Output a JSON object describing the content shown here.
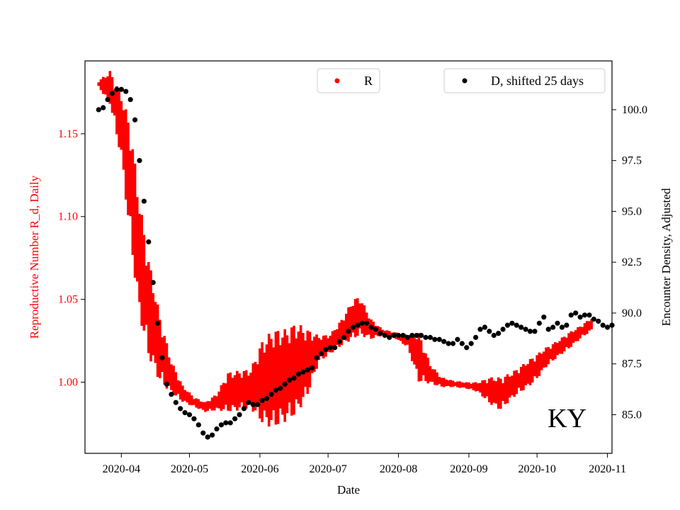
{
  "chart_data": {
    "type": "scatter",
    "title": "",
    "annotation": "KY",
    "xlabel": "Date",
    "ylabel_left": "Reproductive Number R_d, Daily",
    "ylabel_right": "Encounter Density, Adjusted",
    "x_ticks": [
      "2020-04",
      "2020-05",
      "2020-06",
      "2020-07",
      "2020-08",
      "2020-09",
      "2020-10",
      "2020-11"
    ],
    "xlim": [
      "2020-03-16",
      "2020-11-03"
    ],
    "ylim_left": [
      0.957,
      1.194
    ],
    "ylim_right": [
      83.1,
      102.4
    ],
    "yticks_left": [
      "1.00",
      "1.05",
      "1.10",
      "1.15"
    ],
    "yticks_right": [
      "85.0",
      "87.5",
      "90.0",
      "92.5",
      "95.0",
      "97.5",
      "100.0"
    ],
    "colors": {
      "R": "#ff0000",
      "D": "#000000",
      "left_axis_text": "#ff0000",
      "right_axis_text": "#000000"
    },
    "grid": false,
    "series": [
      {
        "name": "R",
        "axis": "left",
        "color": "#ff0000",
        "style": "band",
        "center": [
          [
            "2020-03-22",
            1.18
          ],
          [
            "2020-03-27",
            1.178
          ],
          [
            "2020-04-01",
            1.155
          ],
          [
            "2020-04-05",
            1.12
          ],
          [
            "2020-04-09",
            1.075
          ],
          [
            "2020-04-13",
            1.045
          ],
          [
            "2020-04-18",
            1.02
          ],
          [
            "2020-04-23",
            1.003
          ],
          [
            "2020-04-28",
            0.993
          ],
          [
            "2020-05-03",
            0.988
          ],
          [
            "2020-05-08",
            0.985
          ],
          [
            "2020-05-13",
            0.988
          ],
          [
            "2020-05-18",
            0.994
          ],
          [
            "2020-05-23",
            0.995
          ],
          [
            "2020-05-28",
            0.996
          ],
          [
            "2020-06-02",
            1.0
          ],
          [
            "2020-06-07",
            1.002
          ],
          [
            "2020-06-12",
            1.004
          ],
          [
            "2020-06-17",
            1.008
          ],
          [
            "2020-06-22",
            1.012
          ],
          [
            "2020-06-27",
            1.02
          ],
          [
            "2020-07-02",
            1.023
          ],
          [
            "2020-07-07",
            1.03
          ],
          [
            "2020-07-12",
            1.038
          ],
          [
            "2020-07-15",
            1.04
          ],
          [
            "2020-07-20",
            1.032
          ],
          [
            "2020-07-25",
            1.03
          ],
          [
            "2020-07-31",
            1.028
          ],
          [
            "2020-08-05",
            1.025
          ],
          [
            "2020-08-10",
            1.015
          ],
          [
            "2020-08-15",
            1.005
          ],
          [
            "2020-08-20",
            1.0
          ],
          [
            "2020-08-25",
            0.999
          ],
          [
            "2020-08-31",
            0.998
          ],
          [
            "2020-09-05",
            0.997
          ],
          [
            "2020-09-10",
            0.995
          ],
          [
            "2020-09-15",
            0.993
          ],
          [
            "2020-09-20",
            0.998
          ],
          [
            "2020-09-25",
            1.003
          ],
          [
            "2020-09-30",
            1.008
          ],
          [
            "2020-10-05",
            1.015
          ],
          [
            "2020-10-10",
            1.02
          ],
          [
            "2020-10-15",
            1.025
          ],
          [
            "2020-10-20",
            1.03
          ],
          [
            "2020-10-25",
            1.035
          ]
        ],
        "half_width": [
          [
            "2020-03-22",
            0.002
          ],
          [
            "2020-03-27",
            0.01
          ],
          [
            "2020-04-01",
            0.02
          ],
          [
            "2020-04-05",
            0.035
          ],
          [
            "2020-04-09",
            0.035
          ],
          [
            "2020-04-13",
            0.03
          ],
          [
            "2020-04-18",
            0.02
          ],
          [
            "2020-04-23",
            0.01
          ],
          [
            "2020-04-28",
            0.005
          ],
          [
            "2020-05-03",
            0.003
          ],
          [
            "2020-05-08",
            0.003
          ],
          [
            "2020-05-13",
            0.005
          ],
          [
            "2020-05-18",
            0.012
          ],
          [
            "2020-05-23",
            0.012
          ],
          [
            "2020-05-28",
            0.012
          ],
          [
            "2020-06-02",
            0.025
          ],
          [
            "2020-06-07",
            0.03
          ],
          [
            "2020-06-12",
            0.028
          ],
          [
            "2020-06-17",
            0.028
          ],
          [
            "2020-06-22",
            0.02
          ],
          [
            "2020-06-27",
            0.008
          ],
          [
            "2020-07-02",
            0.006
          ],
          [
            "2020-07-07",
            0.008
          ],
          [
            "2020-07-12",
            0.012
          ],
          [
            "2020-07-15",
            0.012
          ],
          [
            "2020-07-20",
            0.006
          ],
          [
            "2020-07-25",
            0.002
          ],
          [
            "2020-07-31",
            0.002
          ],
          [
            "2020-08-05",
            0.004
          ],
          [
            "2020-08-10",
            0.015
          ],
          [
            "2020-08-15",
            0.006
          ],
          [
            "2020-08-20",
            0.003
          ],
          [
            "2020-08-25",
            0.002
          ],
          [
            "2020-08-31",
            0.002
          ],
          [
            "2020-09-05",
            0.003
          ],
          [
            "2020-09-10",
            0.008
          ],
          [
            "2020-09-15",
            0.01
          ],
          [
            "2020-09-20",
            0.008
          ],
          [
            "2020-09-25",
            0.008
          ],
          [
            "2020-09-30",
            0.008
          ],
          [
            "2020-10-05",
            0.006
          ],
          [
            "2020-10-10",
            0.005
          ],
          [
            "2020-10-15",
            0.005
          ],
          [
            "2020-10-20",
            0.004
          ],
          [
            "2020-10-25",
            0.004
          ]
        ]
      },
      {
        "name": "D, shifted 25 days",
        "axis": "right",
        "color": "#000000",
        "style": "points",
        "points": [
          [
            "2020-03-22",
            100.0
          ],
          [
            "2020-03-24",
            100.1
          ],
          [
            "2020-03-26",
            100.5
          ],
          [
            "2020-03-28",
            100.8
          ],
          [
            "2020-03-30",
            101.0
          ],
          [
            "2020-04-01",
            101.0
          ],
          [
            "2020-04-03",
            100.9
          ],
          [
            "2020-04-05",
            100.5
          ],
          [
            "2020-04-07",
            99.5
          ],
          [
            "2020-04-09",
            97.5
          ],
          [
            "2020-04-11",
            95.5
          ],
          [
            "2020-04-13",
            93.5
          ],
          [
            "2020-04-15",
            91.5
          ],
          [
            "2020-04-17",
            89.5
          ],
          [
            "2020-04-19",
            87.8
          ],
          [
            "2020-04-21",
            86.5
          ],
          [
            "2020-04-23",
            86.0
          ],
          [
            "2020-04-25",
            85.6
          ],
          [
            "2020-04-27",
            85.3
          ],
          [
            "2020-04-29",
            85.1
          ],
          [
            "2020-05-01",
            85.0
          ],
          [
            "2020-05-03",
            84.8
          ],
          [
            "2020-05-05",
            84.5
          ],
          [
            "2020-05-07",
            84.1
          ],
          [
            "2020-05-09",
            83.9
          ],
          [
            "2020-05-11",
            84.0
          ],
          [
            "2020-05-13",
            84.3
          ],
          [
            "2020-05-15",
            84.5
          ],
          [
            "2020-05-17",
            84.6
          ],
          [
            "2020-05-19",
            84.6
          ],
          [
            "2020-05-21",
            84.8
          ],
          [
            "2020-05-23",
            85.0
          ],
          [
            "2020-05-25",
            85.3
          ],
          [
            "2020-05-27",
            85.6
          ],
          [
            "2020-05-29",
            85.5
          ],
          [
            "2020-05-31",
            85.5
          ],
          [
            "2020-06-02",
            85.7
          ],
          [
            "2020-06-04",
            85.8
          ],
          [
            "2020-06-06",
            86.0
          ],
          [
            "2020-06-08",
            86.2
          ],
          [
            "2020-06-10",
            86.3
          ],
          [
            "2020-06-12",
            86.5
          ],
          [
            "2020-06-14",
            86.7
          ],
          [
            "2020-06-16",
            86.8
          ],
          [
            "2020-06-18",
            87.0
          ],
          [
            "2020-06-20",
            87.1
          ],
          [
            "2020-06-22",
            87.2
          ],
          [
            "2020-06-24",
            87.3
          ],
          [
            "2020-06-26",
            87.8
          ],
          [
            "2020-06-28",
            88.0
          ],
          [
            "2020-06-30",
            88.2
          ],
          [
            "2020-07-02",
            88.3
          ],
          [
            "2020-07-04",
            88.3
          ],
          [
            "2020-07-06",
            88.6
          ],
          [
            "2020-07-08",
            88.8
          ],
          [
            "2020-07-10",
            89.1
          ],
          [
            "2020-07-12",
            89.3
          ],
          [
            "2020-07-14",
            89.4
          ],
          [
            "2020-07-16",
            89.5
          ],
          [
            "2020-07-18",
            89.5
          ],
          [
            "2020-07-20",
            89.3
          ],
          [
            "2020-07-22",
            89.2
          ],
          [
            "2020-07-24",
            89.0
          ],
          [
            "2020-07-26",
            88.9
          ],
          [
            "2020-07-28",
            88.8
          ],
          [
            "2020-07-30",
            88.9
          ],
          [
            "2020-08-01",
            88.9
          ],
          [
            "2020-08-03",
            88.9
          ],
          [
            "2020-08-05",
            88.8
          ],
          [
            "2020-08-07",
            88.9
          ],
          [
            "2020-08-09",
            88.9
          ],
          [
            "2020-08-11",
            88.9
          ],
          [
            "2020-08-13",
            88.8
          ],
          [
            "2020-08-15",
            88.8
          ],
          [
            "2020-08-17",
            88.7
          ],
          [
            "2020-08-19",
            88.7
          ],
          [
            "2020-08-21",
            88.6
          ],
          [
            "2020-08-23",
            88.5
          ],
          [
            "2020-08-25",
            88.5
          ],
          [
            "2020-08-27",
            88.7
          ],
          [
            "2020-08-29",
            88.5
          ],
          [
            "2020-08-31",
            88.3
          ],
          [
            "2020-09-02",
            88.5
          ],
          [
            "2020-09-04",
            88.8
          ],
          [
            "2020-09-06",
            89.2
          ],
          [
            "2020-09-08",
            89.3
          ],
          [
            "2020-09-10",
            89.1
          ],
          [
            "2020-09-12",
            88.9
          ],
          [
            "2020-09-14",
            89.0
          ],
          [
            "2020-09-16",
            89.2
          ],
          [
            "2020-09-18",
            89.4
          ],
          [
            "2020-09-20",
            89.5
          ],
          [
            "2020-09-22",
            89.4
          ],
          [
            "2020-09-24",
            89.3
          ],
          [
            "2020-09-26",
            89.2
          ],
          [
            "2020-09-28",
            89.1
          ],
          [
            "2020-09-30",
            89.1
          ],
          [
            "2020-10-02",
            89.5
          ],
          [
            "2020-10-04",
            89.8
          ],
          [
            "2020-10-06",
            89.2
          ],
          [
            "2020-10-08",
            89.3
          ],
          [
            "2020-10-10",
            89.5
          ],
          [
            "2020-10-12",
            89.3
          ],
          [
            "2020-10-14",
            89.4
          ],
          [
            "2020-10-16",
            89.9
          ],
          [
            "2020-10-18",
            90.0
          ],
          [
            "2020-10-20",
            89.8
          ],
          [
            "2020-10-22",
            89.9
          ],
          [
            "2020-10-24",
            89.9
          ],
          [
            "2020-10-26",
            89.7
          ],
          [
            "2020-10-28",
            89.6
          ],
          [
            "2020-10-30",
            89.4
          ],
          [
            "2020-11-01",
            89.3
          ],
          [
            "2020-11-03",
            89.4
          ]
        ]
      }
    ]
  }
}
